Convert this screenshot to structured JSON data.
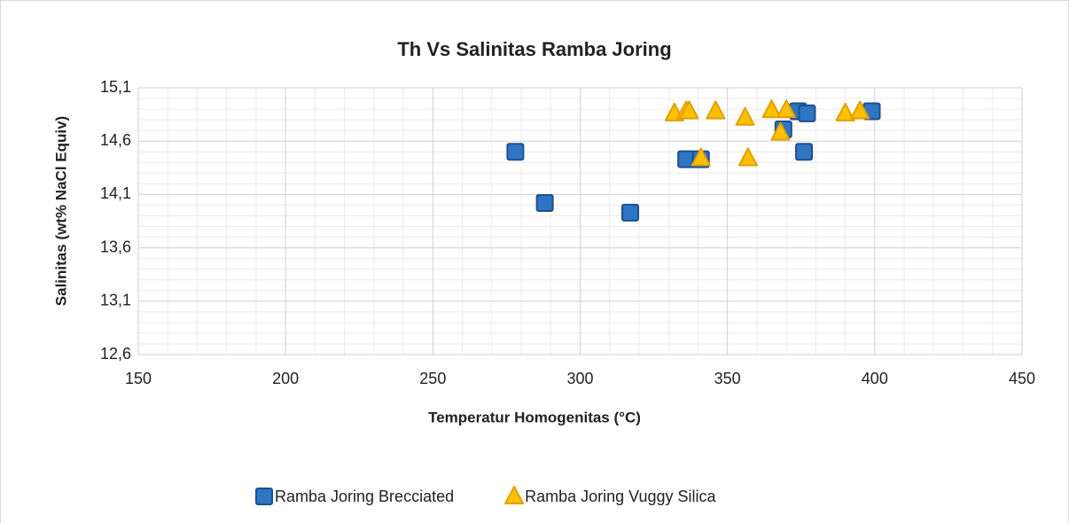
{
  "chart_data": {
    "type": "scatter",
    "title": "Th Vs Salinitas Ramba Joring",
    "x_label": "Temperatur Homogenitas  (°C)",
    "y_label": "Salinitas (wt% NaCl Equiv)",
    "xlim": [
      150,
      450
    ],
    "xticks": [
      150,
      200,
      250,
      300,
      350,
      400,
      450
    ],
    "ylim": [
      12.6,
      15.1
    ],
    "yticks": [
      {
        "value": 12.6,
        "label": "12,6"
      },
      {
        "value": 13.1,
        "label": "13,1"
      },
      {
        "value": 13.6,
        "label": "13,6"
      },
      {
        "value": 14.1,
        "label": "14,1"
      },
      {
        "value": 14.6,
        "label": "14,6"
      },
      {
        "value": 15.1,
        "label": "15,1"
      }
    ],
    "grid": true,
    "minor_grid": true,
    "legend": "bottom",
    "series": [
      {
        "name": "Ramba Joring Brecciated",
        "color": "#2e75c4",
        "marker": "square",
        "x": [
          288,
          317,
          278,
          336,
          341,
          369,
          374,
          377,
          376,
          399
        ],
        "values": [
          14.02,
          13.93,
          14.5,
          14.43,
          14.43,
          14.71,
          14.88,
          14.86,
          14.5,
          14.88
        ]
      },
      {
        "name": "Ramba Joring Vuggy Silica",
        "color": "#ffc000",
        "marker": "triangle",
        "x": [
          332,
          336,
          337,
          346,
          356,
          341,
          357,
          365,
          368,
          370,
          390,
          395
        ],
        "values": [
          14.86,
          14.88,
          14.88,
          14.88,
          14.82,
          14.44,
          14.44,
          14.89,
          14.68,
          14.89,
          14.86,
          14.88
        ]
      }
    ]
  }
}
